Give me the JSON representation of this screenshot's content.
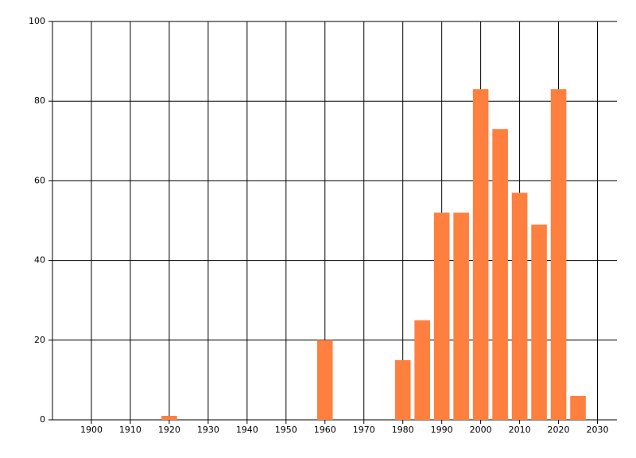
{
  "chart_data": {
    "type": "bar",
    "x": [
      1920,
      1960,
      1980,
      1985,
      1990,
      1995,
      2000,
      2005,
      2010,
      2015,
      2020,
      2025
    ],
    "values": [
      1,
      20,
      15,
      25,
      52,
      52,
      83,
      73,
      57,
      49,
      83,
      6
    ],
    "color": "#ff7f3f",
    "xlim": [
      1890,
      2035
    ],
    "xticks": [
      1900,
      1910,
      1920,
      1930,
      1940,
      1950,
      1960,
      1970,
      1980,
      1990,
      2000,
      2010,
      2020,
      2030
    ],
    "ylim": [
      0,
      100
    ],
    "yticks": [
      0,
      20,
      40,
      60,
      80,
      100
    ],
    "grid": true
  }
}
